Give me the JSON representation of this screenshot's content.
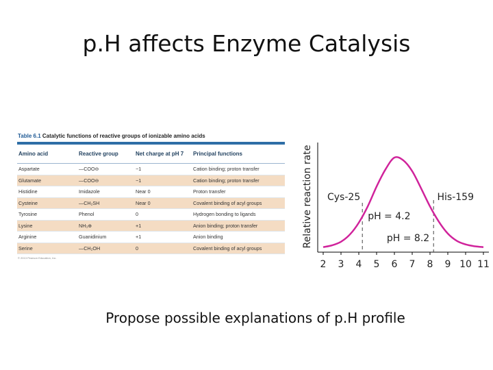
{
  "slide": {
    "title": "p.H affects Enzyme Catalysis",
    "caption": "Propose possible explanations of p.H profile"
  },
  "table": {
    "caption_number": "Table 6.1",
    "caption_text": "Catalytic functions of reactive groups of ionizable amino acids",
    "headers": [
      "Amino acid",
      "Reactive group",
      "Net charge at pH 7",
      "Principal functions"
    ],
    "rows": [
      [
        "Aspartate",
        "—COO⊖",
        "−1",
        "Cation binding; proton transfer"
      ],
      [
        "Glutamate",
        "—COO⊖",
        "−1",
        "Cation binding; proton transfer"
      ],
      [
        "Histidine",
        "Imidazole",
        "Near 0",
        "Proton transfer"
      ],
      [
        "Cysteine",
        "—CH₂SH",
        "Near 0",
        "Covalent binding of acyl groups"
      ],
      [
        "Tyrosine",
        "Phenol",
        "0",
        "Hydrogen bonding to ligands"
      ],
      [
        "Lysine",
        "NH₃⊕",
        "+1",
        "Anion binding; proton transfer"
      ],
      [
        "Arginine",
        "Guanidinium",
        "+1",
        "Anion binding"
      ],
      [
        "Serine",
        "—CH₂OH",
        "0",
        "Covalent binding of acyl groups"
      ]
    ],
    "footnote": "© 2013 Pearson Education, Inc."
  },
  "chart_data": {
    "type": "line",
    "xlabel": "",
    "ylabel": "Relative reaction rate",
    "xlim": [
      2,
      11
    ],
    "x_ticks": [
      2,
      3,
      4,
      5,
      6,
      7,
      8,
      9,
      10,
      11
    ],
    "series": [
      {
        "color": "#d0239b",
        "x": [
          2,
          2.5,
          3,
          3.5,
          4,
          4.5,
          5,
          5.5,
          6,
          6.5,
          7,
          7.5,
          8,
          8.5,
          9,
          9.5,
          10,
          10.5,
          11
        ],
        "y": [
          0.01,
          0.03,
          0.07,
          0.15,
          0.28,
          0.46,
          0.68,
          0.87,
          1.0,
          0.97,
          0.85,
          0.66,
          0.46,
          0.29,
          0.16,
          0.08,
          0.04,
          0.02,
          0.01
        ]
      }
    ],
    "annotations": [
      {
        "text": "Cys-25"
      },
      {
        "text": "His-159"
      },
      {
        "text": "pH = 4.2",
        "x": 4.2
      },
      {
        "text": "pH = 8.2",
        "x": 8.2
      }
    ],
    "colors": {
      "curve": "#d0239b",
      "axis": "#000000"
    }
  }
}
